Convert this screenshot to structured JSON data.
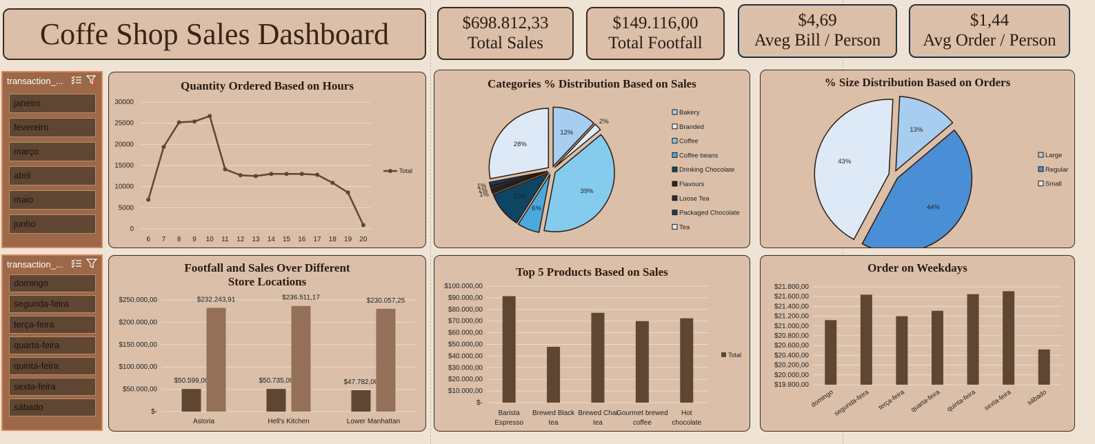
{
  "header": {
    "title": "Coffe Shop Sales Dashboard"
  },
  "kpis": [
    {
      "value": "$698.812,33",
      "label": "Total Sales"
    },
    {
      "value": "$149.116,00",
      "label": "Total Footfall"
    },
    {
      "value": "$4,69",
      "label": "Aveg Bill / Person"
    },
    {
      "value": "$1,44",
      "label": "Avg Order / Person"
    }
  ],
  "slicer_month": {
    "title": "transaction_...",
    "items": [
      "janeiro",
      "fevereiro",
      "março",
      "abril",
      "maio",
      "junho"
    ]
  },
  "slicer_weekday": {
    "title": "transaction_...",
    "items": [
      "domingo",
      "segunda-feira",
      "terça-feira",
      "quarta-feira",
      "quinta-feira",
      "sexta-feira",
      "sábado"
    ]
  },
  "colors": {
    "brown": "#5e4632",
    "lightbrown": "#957059",
    "panel": "#dbbfa8",
    "border": "#3b2a1e"
  },
  "chart_data": [
    {
      "id": "hours",
      "type": "line",
      "title": "Quantity Ordered Based on Hours",
      "x": [
        6,
        7,
        8,
        9,
        10,
        11,
        12,
        13,
        14,
        15,
        16,
        17,
        18,
        19,
        20
      ],
      "series": [
        {
          "name": "Total",
          "values": [
            6900,
            19400,
            25200,
            25400,
            26700,
            14100,
            12700,
            12500,
            13000,
            13000,
            13000,
            12800,
            10900,
            8600,
            900
          ]
        }
      ],
      "ylim": [
        0,
        30000
      ],
      "yticks": [
        "0",
        "5000",
        "10000",
        "15000",
        "20000",
        "25000",
        "30000"
      ],
      "legend": "right"
    },
    {
      "id": "categories",
      "type": "pie",
      "title": "Categories % Distribution Based on Sales",
      "labels": [
        "Bakery",
        "Branded",
        "Coffee",
        "Coffee beans",
        "Drinking Chocolate",
        "Flavours",
        "Loose Tea",
        "Packaged Chocolate",
        "Tea"
      ],
      "values": [
        12,
        2,
        39,
        6,
        10,
        1,
        1,
        1,
        28
      ],
      "data_labels": [
        "12%",
        "2%",
        "39%",
        "6%",
        "10%",
        "1%",
        "1%",
        "1%",
        "28%"
      ],
      "colors": [
        "#a7cdf0",
        "#dcecfa",
        "#84cbee",
        "#49a9dd",
        "#0e4565",
        "#2a231f",
        "#1e2f3d",
        "#1b3c57",
        "#dde9f6"
      ],
      "legend": "right"
    },
    {
      "id": "sizes",
      "type": "pie",
      "title": "% Size Distribution Based on Orders",
      "labels": [
        "Large",
        "Regular",
        "Small"
      ],
      "values": [
        13,
        44,
        43
      ],
      "data_labels": [
        "13%",
        "44%",
        "43%"
      ],
      "colors": [
        "#a7cdf0",
        "#4a8fd6",
        "#dde9f6"
      ],
      "legend": "right"
    },
    {
      "id": "locations",
      "type": "bar",
      "title": "Footfall and Sales Over Different Store Locations",
      "categories": [
        "Astoria",
        "Hell's Kitchen",
        "Lower Manhattan"
      ],
      "series": [
        {
          "values": [
            50599,
            50735,
            47782
          ],
          "labels": [
            "$50.599,00",
            "$50.735,00",
            "$47.782,00"
          ]
        },
        {
          "values": [
            232243.91,
            236511.17,
            230057.25
          ],
          "labels": [
            "$232.243,91",
            "$236.511,17",
            "$230.057,25"
          ]
        }
      ],
      "ylim": [
        0,
        250000
      ],
      "yticks": [
        "$-",
        "$50.000,00",
        "$100.000,00",
        "$150.000,00",
        "$200.000,00",
        "$250.000,00"
      ]
    },
    {
      "id": "products",
      "type": "bar",
      "title": "Top 5 Products Based on Sales",
      "categories": [
        "Barista Espresso",
        "Brewed Black tea",
        "Brewed Chai tea",
        "Gourmet brewed coffee",
        "Hot chocolate"
      ],
      "series": [
        {
          "name": "Total",
          "values": [
            91400,
            47900,
            77100,
            70000,
            72400
          ]
        }
      ],
      "ylim": [
        0,
        100000
      ],
      "yticks": [
        "$-",
        "$10.000,00",
        "$20.000,00",
        "$30.000,00",
        "$40.000,00",
        "$50.000,00",
        "$60.000,00",
        "$70.000,00",
        "$80.000,00",
        "$90.000,00",
        "$100.000,00"
      ],
      "legend": "right"
    },
    {
      "id": "weekdays",
      "type": "bar",
      "title": "Order on Weekdays",
      "categories": [
        "domingo",
        "segunda-feira",
        "terça-feira",
        "quarta-feira",
        "quinta-feira",
        "sexta-feira",
        "sábado"
      ],
      "values": [
        21120,
        21640,
        21200,
        21310,
        21650,
        21710,
        20520
      ],
      "ylim": [
        19800,
        21800
      ],
      "yticks": [
        "$19.800,00",
        "$20.000,00",
        "$20.200,00",
        "$20.400,00",
        "$20.600,00",
        "$20.800,00",
        "$21.000,00",
        "$21.200,00",
        "$21.400,00",
        "$21.600,00",
        "$21.800,00"
      ]
    }
  ]
}
